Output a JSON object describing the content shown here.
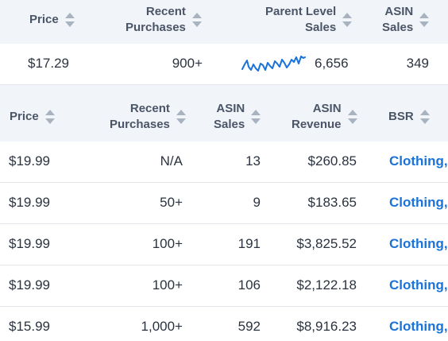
{
  "summary": {
    "headers": {
      "price": "Price",
      "recent_line1": "Recent",
      "recent_line2": "Purchases",
      "parent_line1": "Parent Level",
      "parent_line2": "Sales",
      "asin_line1": "ASIN",
      "asin_line2": "Sales"
    },
    "row": {
      "price": "$17.29",
      "recent_purchases": "900+",
      "parent_level_sales": "6,656",
      "asin_sales": "349"
    },
    "sparkline_color": "#1a73d9"
  },
  "variants": {
    "headers": {
      "price": "Price",
      "recent_line1": "Recent",
      "recent_line2": "Purchases",
      "asin_sales_line1": "ASIN",
      "asin_sales_line2": "Sales",
      "asin_rev_line1": "ASIN",
      "asin_rev_line2": "Revenue",
      "bsr": "BSR"
    },
    "rows": [
      {
        "price": "$19.99",
        "recent": "N/A",
        "asin_sales": "13",
        "revenue": "$260.85",
        "bsr": "Clothing,"
      },
      {
        "price": "$19.99",
        "recent": "50+",
        "asin_sales": "9",
        "revenue": "$183.65",
        "bsr": "Clothing,"
      },
      {
        "price": "$19.99",
        "recent": "100+",
        "asin_sales": "191",
        "revenue": "$3,825.52",
        "bsr": "Clothing,"
      },
      {
        "price": "$19.99",
        "recent": "100+",
        "asin_sales": "106",
        "revenue": "$2,122.18",
        "bsr": "Clothing,"
      },
      {
        "price": "$15.99",
        "recent": "1,000+",
        "asin_sales": "592",
        "revenue": "$8,916.23",
        "bsr": "Clothing,"
      }
    ]
  },
  "colors": {
    "header_bg": "#f1f4f8",
    "link": "#1a73d9",
    "text": "#2b3340"
  }
}
